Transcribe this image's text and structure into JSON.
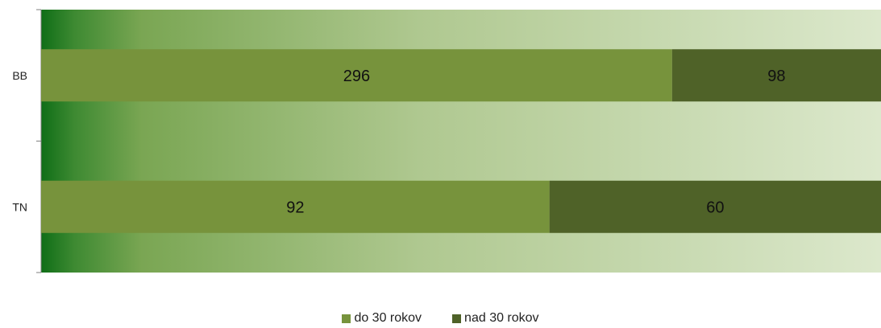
{
  "chart_data": {
    "type": "bar",
    "orientation": "horizontal",
    "stacked": true,
    "categories": [
      "BB",
      "TN"
    ],
    "series": [
      {
        "name": "do 30 rokov",
        "values": [
          296,
          92
        ],
        "color": "#77933c"
      },
      {
        "name": "nad 30 rokov",
        "values": [
          98,
          60
        ],
        "color": "#4f6228"
      }
    ],
    "title": "",
    "xlabel": "",
    "ylabel": "",
    "data_labels": true,
    "legend_position": "bottom",
    "grid": false,
    "normalized": "100%"
  },
  "colors": {
    "background_gradient": [
      "#0f6e17",
      "#3e8a32",
      "#7aa653",
      "#afc890",
      "#dce8cc"
    ]
  }
}
